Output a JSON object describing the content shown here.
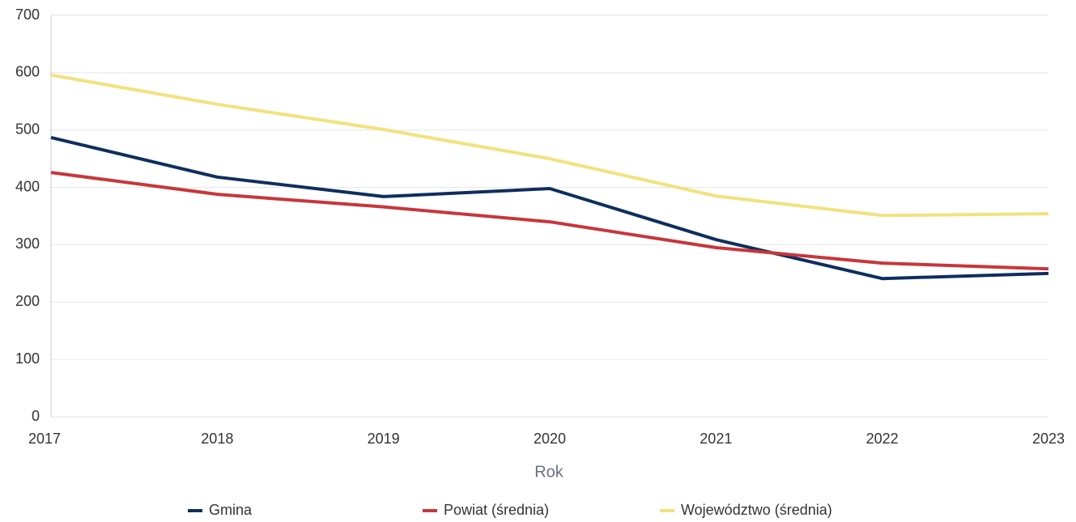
{
  "chart_data": {
    "type": "line",
    "x_label": "Rok",
    "categories": [
      "2017",
      "2018",
      "2019",
      "2020",
      "2021",
      "2022",
      "2023"
    ],
    "series": [
      {
        "name": "Gmina",
        "color": "#0d2f5e",
        "values": [
          487,
          418,
          384,
          398,
          309,
          241,
          250
        ]
      },
      {
        "name": "Powiat (średnia)",
        "color": "#c8363a",
        "values": [
          426,
          388,
          366,
          340,
          295,
          268,
          258
        ]
      },
      {
        "name": "Województwo (średnia)",
        "color": "#f2e27d",
        "values": [
          596,
          545,
          501,
          450,
          385,
          351,
          354
        ]
      }
    ],
    "ylim": [
      0,
      700
    ],
    "yticks": [
      0,
      100,
      200,
      300,
      400,
      500,
      600,
      700
    ],
    "grid": true,
    "legend": "bottom"
  }
}
